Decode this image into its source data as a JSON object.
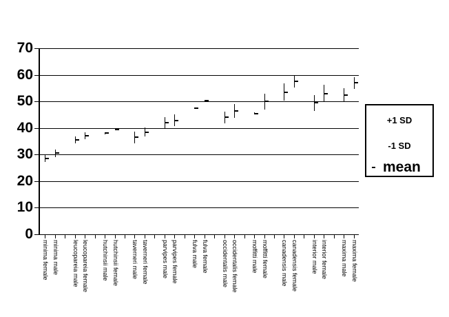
{
  "page": {
    "background_color": "#ffffff",
    "foreground_color": "#000000"
  },
  "legend": {
    "position": "right",
    "plus_sd_label": "+1 SD",
    "minus_sd_label": "-1 SD",
    "mean_label": "mean",
    "mean_marker": "tick-dash"
  },
  "chart_data": {
    "type": "scatter",
    "subtype": "mean-with-sd-error-bars",
    "title": "",
    "xlabel": "",
    "ylabel": "",
    "ylim": [
      0,
      70
    ],
    "y_ticks": [
      0,
      10,
      20,
      30,
      40,
      50,
      60,
      70
    ],
    "grid": true,
    "n_slots": 32,
    "legend_entries": [
      "+1 SD",
      "-1 SD",
      "mean"
    ],
    "points": [
      {
        "label": "minima female",
        "slot": 1,
        "mean": 28.5,
        "sd": 1.3
      },
      {
        "label": "minima male",
        "slot": 2,
        "mean": 30.5,
        "sd": 1.5
      },
      {
        "label": "leucopareia male",
        "slot": 4,
        "mean": 35.5,
        "sd": 1.2
      },
      {
        "label": "leucopareia female",
        "slot": 5,
        "mean": 37.0,
        "sd": 1.3
      },
      {
        "label": "hutchinsii male",
        "slot": 7,
        "mean": 38.0,
        "sd": 0.3
      },
      {
        "label": "hutchinsii female",
        "slot": 8,
        "mean": 39.3,
        "sd": 0.2
      },
      {
        "label": "taverneri male",
        "slot": 10,
        "mean": 36.5,
        "sd": 2.2
      },
      {
        "label": "taverneri female",
        "slot": 11,
        "mean": 38.5,
        "sd": 1.6
      },
      {
        "label": "parvipes male",
        "slot": 13,
        "mean": 42.0,
        "sd": 2.0
      },
      {
        "label": "parvipes female",
        "slot": 14,
        "mean": 42.8,
        "sd": 2.2
      },
      {
        "label": "fulva male",
        "slot": 16,
        "mean": 47.5,
        "sd": 0.3
      },
      {
        "label": "fulva female",
        "slot": 17,
        "mean": 50.4,
        "sd": 0.2
      },
      {
        "label": "occidentalis male",
        "slot": 19,
        "mean": 44.0,
        "sd": 2.2
      },
      {
        "label": "occidentalis female",
        "slot": 20,
        "mean": 46.5,
        "sd": 2.6
      },
      {
        "label": "moffitti male",
        "slot": 22,
        "mean": 45.5,
        "sd": 0.4
      },
      {
        "label": "moffitti female",
        "slot": 23,
        "mean": 50.0,
        "sd": 3.0
      },
      {
        "label": "canadensis male",
        "slot": 25,
        "mean": 53.5,
        "sd": 3.3
      },
      {
        "label": "canadensis female",
        "slot": 26,
        "mean": 57.5,
        "sd": 2.4
      },
      {
        "label": "interior male",
        "slot": 28,
        "mean": 49.5,
        "sd": 3.0
      },
      {
        "label": "interior female",
        "slot": 29,
        "mean": 53.0,
        "sd": 3.3
      },
      {
        "label": "maxima male",
        "slot": 31,
        "mean": 52.5,
        "sd": 2.5
      },
      {
        "label": "maxima female",
        "slot": 32,
        "mean": 57.0,
        "sd": 2.2
      }
    ]
  }
}
